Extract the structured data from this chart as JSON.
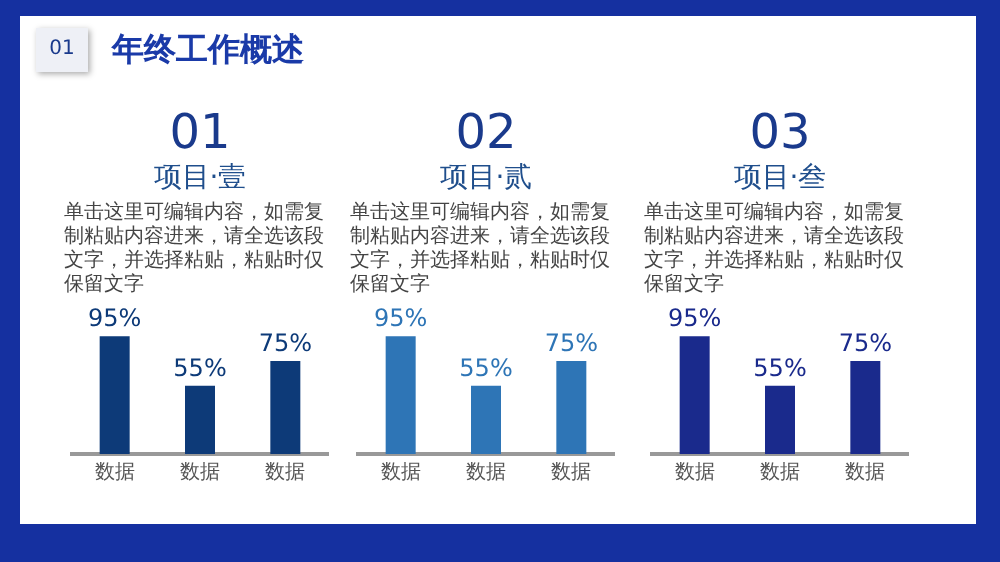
{
  "chart_data": [
    {
      "type": "other",
      "title": "年终工作概述",
      "annotations": [
        "01"
      ]
    },
    {
      "type": "bar",
      "title": "项目·壹",
      "annotations": [
        "01",
        "单击这里可编辑内容，如需复制粘贴内容进来，请全选该段文字，并选择粘贴，粘贴时仅保留文字"
      ],
      "categories": [
        "数据",
        "数据",
        "数据"
      ],
      "values": [
        95,
        55,
        75
      ],
      "value_labels": [
        "95%",
        "55%",
        "75%"
      ],
      "color": "#0d3a78",
      "tick_labels": "x"
    },
    {
      "type": "bar",
      "title": "项目·贰",
      "annotations": [
        "02",
        "单击这里可编辑内容，如需复制粘贴内容进来，请全选该段文字，并选择粘贴，粘贴时仅保留文字"
      ],
      "categories": [
        "数据",
        "数据",
        "数据"
      ],
      "values": [
        95,
        55,
        75
      ],
      "value_labels": [
        "95%",
        "55%",
        "75%"
      ],
      "color": "#2e75b6",
      "tick_labels": "x"
    },
    {
      "type": "bar",
      "title": "项目·叁",
      "annotations": [
        "03",
        "单击这里可编辑内容，如需复制粘贴内容进来，请全选该段文字，并选择粘贴，粘贴时仅保留文字"
      ],
      "categories": [
        "数据",
        "数据",
        "数据"
      ],
      "values": [
        95,
        55,
        75
      ],
      "value_labels": [
        "95%",
        "55%",
        "75%"
      ],
      "color": "#1a2a8c",
      "tick_labels": "x"
    }
  ]
}
